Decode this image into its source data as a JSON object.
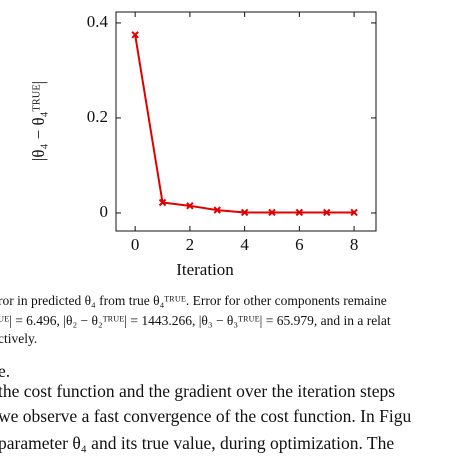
{
  "chart_data": {
    "type": "line",
    "y_label": "|θ₄ − θ₄ᵀᴿᵁᴱ|",
    "x_label": "Iteration",
    "x": [
      0,
      1,
      2,
      3,
      4,
      5,
      6,
      7,
      8
    ],
    "series": [
      {
        "color": "#e00000",
        "values": [
          0.375,
          0.022,
          0.015,
          0.006,
          0.001,
          0.001,
          0.001,
          0.001,
          0.001
        ]
      }
    ],
    "xlim": [
      -0.7,
      8.8
    ],
    "ylim": [
      -0.038,
      0.423
    ],
    "xticks": [
      0,
      2,
      4,
      6,
      8
    ],
    "yticks": [
      0,
      0.2,
      0.4
    ],
    "grid": false
  },
  "caption": {
    "lines": [
      "ror in predicted θ₄ from true θ₄ᵀᴿᵁᴱ. Error for other components remaine",
      "ᵁᴱ| = 6.496, |θ₂ − θ₂ᵀᴿᵁᴱ| = 1443.266, |θ₃ − θ₃ᵀᴿᵁᴱ| = 65.979, and in a relat",
      "ctively."
    ]
  },
  "body": {
    "lines": [
      "e.",
      "the cost function and the gradient over the iteration steps",
      "we observe a fast convergence of the cost function. In Figu",
      "parameter θ₄ and its true value, during optimization. The"
    ]
  }
}
